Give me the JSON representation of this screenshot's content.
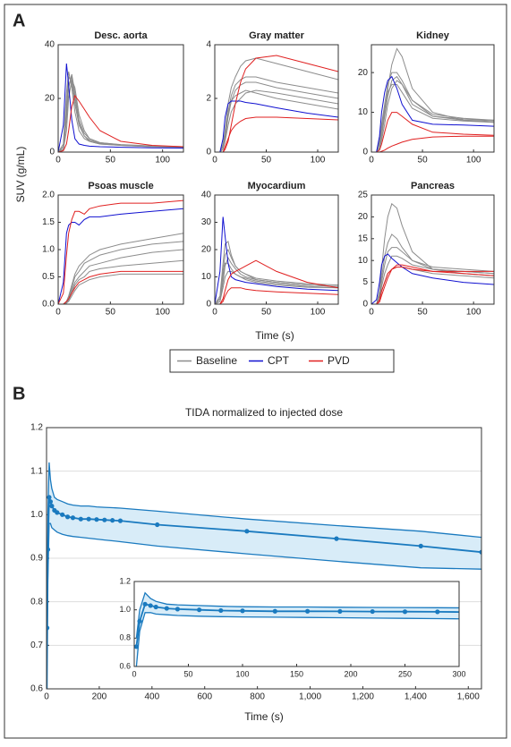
{
  "panel_labels": [
    "A",
    "B"
  ],
  "y_label": "SUV (g/mL)",
  "x_label": "Time (s)",
  "legend": [
    {
      "name": "Baseline",
      "color": "#8c8c8c"
    },
    {
      "name": "CPT",
      "color": "#1010d0"
    },
    {
      "name": "PVD",
      "color": "#e02020"
    }
  ],
  "chart_data": [
    {
      "type": "line",
      "title": "Desc. aorta",
      "x": [
        0,
        5,
        8,
        10,
        13,
        16,
        20,
        25,
        30,
        40,
        60,
        90,
        120
      ],
      "xlim": [
        0,
        120
      ],
      "xticks": [
        0,
        50,
        100
      ],
      "ylim": [
        0,
        40
      ],
      "yticks": [
        0,
        20,
        40
      ],
      "baseline": [
        [
          0,
          2,
          18,
          28,
          26,
          18,
          10,
          6,
          4,
          3,
          2.5,
          2,
          1.8
        ],
        [
          0,
          1,
          12,
          24,
          29,
          22,
          12,
          7,
          5,
          3.5,
          2.7,
          2.2,
          2
        ],
        [
          0,
          3,
          22,
          30,
          24,
          15,
          8,
          5,
          4,
          3,
          2.5,
          2,
          1.8
        ],
        [
          0,
          1,
          8,
          20,
          27,
          24,
          14,
          8,
          5,
          3.5,
          2.8,
          2.3,
          2
        ],
        [
          0,
          2,
          15,
          25,
          28,
          20,
          11,
          6,
          4.5,
          3.2,
          2.6,
          2.1,
          1.9
        ]
      ],
      "cpt": [
        [
          0,
          10,
          33,
          25,
          12,
          5,
          3,
          2.5,
          2.2,
          2,
          1.8,
          1.6,
          1.5
        ]
      ],
      "pvd": [
        [
          0,
          0.5,
          3,
          8,
          17,
          21,
          19,
          16,
          13,
          8,
          4,
          2.5,
          2
        ]
      ]
    },
    {
      "type": "line",
      "title": "Gray matter",
      "x": [
        0,
        5,
        8,
        10,
        13,
        16,
        20,
        25,
        30,
        40,
        60,
        90,
        120
      ],
      "xlim": [
        0,
        120
      ],
      "xticks": [
        0,
        50,
        100
      ],
      "ylim": [
        0,
        4
      ],
      "yticks": [
        0,
        2,
        4
      ],
      "baseline": [
        [
          0,
          0,
          0.3,
          0.8,
          1.8,
          2.4,
          2.8,
          3.2,
          3.4,
          3.5,
          3.3,
          3.0,
          2.7
        ],
        [
          0,
          0,
          0.2,
          0.6,
          1.5,
          2.1,
          2.5,
          2.7,
          2.8,
          2.8,
          2.6,
          2.4,
          2.2
        ],
        [
          0,
          0,
          0.2,
          0.5,
          1.3,
          1.9,
          2.3,
          2.5,
          2.6,
          2.6,
          2.4,
          2.2,
          2.0
        ],
        [
          0,
          0,
          0.3,
          0.7,
          1.4,
          1.9,
          2.1,
          2.2,
          2.3,
          2.2,
          2.0,
          1.8,
          1.6
        ],
        [
          0,
          0,
          0.1,
          0.4,
          1.0,
          1.5,
          1.8,
          2.0,
          2.2,
          2.3,
          2.2,
          2.0,
          1.8
        ]
      ],
      "cpt": [
        [
          0,
          0,
          0.5,
          1.3,
          1.8,
          1.9,
          1.9,
          1.9,
          1.85,
          1.8,
          1.65,
          1.45,
          1.3
        ]
      ],
      "pvd": [
        [
          0,
          0,
          0,
          0.1,
          0.4,
          1.0,
          1.8,
          2.6,
          3.1,
          3.5,
          3.6,
          3.3,
          3.0
        ],
        [
          0,
          0,
          0,
          0.2,
          0.5,
          0.8,
          1.0,
          1.15,
          1.25,
          1.3,
          1.3,
          1.25,
          1.2
        ]
      ]
    },
    {
      "type": "line",
      "title": "Kidney",
      "x": [
        0,
        5,
        8,
        10,
        13,
        16,
        20,
        25,
        30,
        40,
        60,
        90,
        120
      ],
      "xlim": [
        0,
        120
      ],
      "xticks": [
        0,
        50,
        100
      ],
      "ylim": [
        0,
        27
      ],
      "yticks": [
        0,
        10,
        20
      ],
      "baseline": [
        [
          0,
          0,
          2,
          5,
          10,
          16,
          22,
          26,
          24,
          16,
          10,
          8,
          7.5
        ],
        [
          0,
          0,
          3,
          7,
          12,
          17,
          20,
          20,
          18,
          13,
          9,
          8,
          7.8
        ],
        [
          0,
          0,
          1,
          4,
          9,
          14,
          18,
          19,
          17,
          12,
          9,
          8.3,
          8
        ],
        [
          0,
          0,
          2,
          6,
          11,
          15,
          17,
          17,
          15,
          11,
          8.5,
          7.8,
          7.5
        ],
        [
          0,
          0,
          1,
          3,
          7,
          12,
          16,
          18,
          17,
          13,
          9.5,
          8.5,
          8
        ]
      ],
      "cpt": [
        [
          0,
          0,
          4,
          10,
          15,
          18,
          19,
          16,
          12,
          8,
          7,
          6.8,
          6.5
        ]
      ],
      "pvd": [
        [
          0,
          0,
          0.5,
          2,
          5,
          8,
          10,
          10,
          9,
          7,
          5,
          4.5,
          4.2
        ],
        [
          0,
          0,
          0,
          0.2,
          0.5,
          1,
          1.5,
          2,
          2.5,
          3.2,
          3.8,
          4,
          4
        ]
      ]
    },
    {
      "type": "line",
      "title": "Psoas muscle",
      "x": [
        0,
        5,
        8,
        10,
        13,
        16,
        20,
        25,
        30,
        40,
        60,
        90,
        120
      ],
      "xlim": [
        0,
        120
      ],
      "xticks": [
        0,
        50,
        100
      ],
      "ylim": [
        0,
        2
      ],
      "yticks": [
        {
          "value": 0,
          "label": "0.0"
        },
        0.5,
        {
          "value": 1,
          "label": "1.0"
        },
        1.5,
        {
          "value": 2,
          "label": "2.0"
        }
      ],
      "baseline": [
        [
          0,
          0,
          0.05,
          0.15,
          0.35,
          0.55,
          0.7,
          0.8,
          0.9,
          1.0,
          1.1,
          1.2,
          1.3
        ],
        [
          0,
          0,
          0.05,
          0.1,
          0.3,
          0.5,
          0.6,
          0.75,
          0.8,
          0.9,
          1.0,
          1.1,
          1.15
        ],
        [
          0,
          0,
          0.03,
          0.1,
          0.25,
          0.4,
          0.5,
          0.6,
          0.7,
          0.75,
          0.85,
          0.95,
          1.0
        ],
        [
          0,
          0,
          0.02,
          0.08,
          0.2,
          0.35,
          0.45,
          0.5,
          0.6,
          0.65,
          0.7,
          0.75,
          0.8
        ],
        [
          0,
          0,
          0.02,
          0.05,
          0.15,
          0.25,
          0.35,
          0.4,
          0.45,
          0.5,
          0.55,
          0.55,
          0.55
        ]
      ],
      "cpt": [
        [
          0,
          0.4,
          1.3,
          1.45,
          1.5,
          1.5,
          1.45,
          1.55,
          1.6,
          1.6,
          1.65,
          1.7,
          1.75
        ]
      ],
      "pvd": [
        [
          0,
          0.2,
          0.9,
          1.3,
          1.55,
          1.7,
          1.7,
          1.65,
          1.75,
          1.8,
          1.85,
          1.85,
          1.9
        ],
        [
          0,
          0,
          0.05,
          0.1,
          0.2,
          0.3,
          0.4,
          0.45,
          0.5,
          0.55,
          0.6,
          0.6,
          0.6
        ]
      ]
    },
    {
      "type": "line",
      "title": "Myocardium",
      "x": [
        0,
        5,
        8,
        10,
        13,
        16,
        20,
        25,
        30,
        40,
        60,
        90,
        120
      ],
      "xlim": [
        0,
        120
      ],
      "xticks": [
        0,
        50,
        100
      ],
      "ylim": [
        0,
        40
      ],
      "yticks": [
        0,
        10,
        20,
        30,
        40
      ],
      "baseline": [
        [
          0,
          3,
          15,
          22,
          23,
          18,
          14,
          12,
          11,
          9,
          8,
          7,
          6.5
        ],
        [
          0,
          2,
          12,
          18,
          20,
          17,
          14,
          12,
          11,
          9.5,
          8.5,
          7.5,
          7
        ],
        [
          0,
          1,
          8,
          14,
          17,
          15,
          13,
          11,
          10,
          9,
          8,
          7,
          6.5
        ],
        [
          0,
          2,
          10,
          15,
          15,
          13,
          11,
          10,
          9,
          8,
          7,
          6.2,
          6
        ],
        [
          0,
          1,
          6,
          10,
          12,
          12,
          11,
          10,
          9.5,
          8.5,
          7.5,
          6.5,
          6
        ]
      ],
      "cpt": [
        [
          0,
          12,
          32,
          25,
          15,
          10,
          9,
          8.5,
          8,
          7.5,
          6.5,
          5.5,
          5
        ]
      ],
      "pvd": [
        [
          0,
          0,
          2,
          5,
          9,
          11,
          12,
          13,
          14,
          16,
          12,
          8,
          6
        ],
        [
          0,
          0,
          1,
          3,
          5,
          6,
          6,
          6,
          5.5,
          5,
          4.5,
          4,
          3.5
        ]
      ]
    },
    {
      "type": "line",
      "title": "Pancreas",
      "x": [
        0,
        5,
        8,
        10,
        13,
        16,
        20,
        25,
        30,
        40,
        60,
        90,
        120
      ],
      "xlim": [
        0,
        120
      ],
      "xticks": [
        0,
        50,
        100
      ],
      "ylim": [
        0,
        25
      ],
      "yticks": [
        0,
        5,
        10,
        15,
        20,
        25
      ],
      "baseline": [
        [
          0,
          0,
          3,
          8,
          15,
          20,
          23,
          22,
          18,
          12,
          8,
          7,
          6.5
        ],
        [
          0,
          0,
          2,
          6,
          11,
          14,
          16,
          15,
          13,
          10,
          8,
          7.5,
          7
        ],
        [
          0,
          0,
          2,
          5,
          9,
          12,
          13,
          13,
          12,
          10,
          8.5,
          8,
          7.5
        ],
        [
          0,
          0,
          1,
          4,
          7,
          9,
          11,
          11,
          10.5,
          9,
          8,
          7.5,
          7
        ],
        [
          0,
          0,
          1,
          3,
          5,
          7,
          8,
          8.5,
          8.5,
          8,
          7,
          6.5,
          6
        ]
      ],
      "cpt": [
        [
          0,
          1,
          5,
          9,
          11,
          11.5,
          10.5,
          9.5,
          8.5,
          7,
          6,
          5,
          4.5
        ]
      ],
      "pvd": [
        [
          0,
          0,
          1,
          3,
          5,
          7,
          8,
          8.5,
          8.5,
          8,
          7.5,
          7.5,
          7.5
        ],
        [
          0,
          0,
          0.5,
          2,
          4,
          6,
          8,
          9,
          9,
          8.5,
          7.5,
          7,
          6.5
        ]
      ]
    },
    {
      "type": "band",
      "title": "TIDA normalized to injected dose",
      "x_label": "Time (s)",
      "color": "#1a7abf",
      "band_color": "#d8ecf8",
      "grid": true,
      "x": [
        2,
        5,
        10,
        15,
        20,
        30,
        40,
        60,
        80,
        100,
        130,
        160,
        190,
        220,
        250,
        280,
        420,
        760,
        1100,
        1420,
        1650
      ],
      "mean": [
        0.74,
        0.92,
        1.04,
        1.03,
        1.02,
        1.01,
        1.005,
        1.0,
        0.995,
        0.993,
        0.99,
        0.99,
        0.989,
        0.988,
        0.987,
        0.986,
        0.977,
        0.962,
        0.945,
        0.928,
        0.914
      ],
      "upper": [
        0.8,
        1.0,
        1.12,
        1.08,
        1.06,
        1.04,
        1.035,
        1.03,
        1.025,
        1.022,
        1.02,
        1.02,
        1.018,
        1.017,
        1.016,
        1.015,
        1.008,
        0.99,
        0.975,
        0.962,
        0.948
      ],
      "lower": [
        0.6,
        0.85,
        0.98,
        0.98,
        0.97,
        0.965,
        0.96,
        0.955,
        0.952,
        0.95,
        0.948,
        0.946,
        0.944,
        0.942,
        0.94,
        0.938,
        0.928,
        0.91,
        0.893,
        0.878,
        0.875
      ],
      "xlim": [
        0,
        1650
      ],
      "xticks": [
        0,
        200,
        400,
        600,
        800,
        {
          "value": 1000,
          "label": "1,000"
        },
        {
          "value": 1200,
          "label": "1,200"
        },
        {
          "value": 1400,
          "label": "1,400"
        },
        {
          "value": 1600,
          "label": "1,600"
        }
      ],
      "ylim": [
        0.6,
        1.2
      ],
      "yticks": [
        0.6,
        0.7,
        0.8,
        0.9,
        {
          "value": 1,
          "label": "1.0"
        },
        1.1,
        1.2
      ],
      "inset": {
        "xlim": [
          0,
          300
        ],
        "xticks": [
          0,
          50,
          100,
          150,
          200,
          250,
          300
        ],
        "ylim": [
          0.6,
          1.2
        ],
        "yticks": [
          0.6,
          0.8,
          {
            "value": 1,
            "label": "1.0"
          },
          1.2
        ]
      }
    }
  ]
}
